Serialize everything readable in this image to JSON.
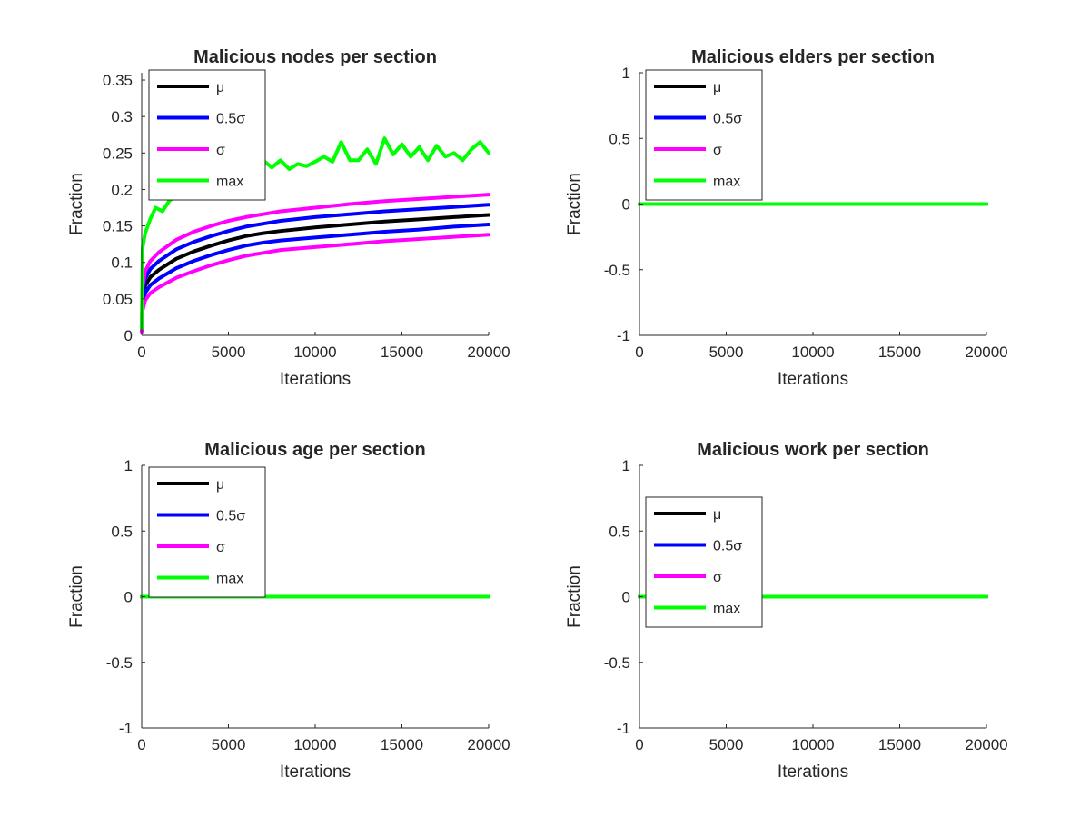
{
  "figure": {
    "background": "#ffffff"
  },
  "chart_data": [
    {
      "type": "line",
      "title": "Malicious nodes per section",
      "xlabel": "Iterations",
      "ylabel": "Fraction",
      "xlim": [
        0,
        20000
      ],
      "ylim": [
        0,
        0.36
      ],
      "xticks": [
        0,
        5000,
        10000,
        15000,
        20000
      ],
      "xtick_labels": [
        "0",
        "5000",
        "10000",
        "15000",
        "20000"
      ],
      "yticks": [
        0,
        0.05,
        0.1,
        0.15,
        0.2,
        0.25,
        0.3,
        0.35
      ],
      "ytick_labels": [
        "0",
        "0.05",
        "0.1",
        "0.15",
        "0.2",
        "0.25",
        "0.3",
        "0.35"
      ],
      "grid": false,
      "legend": {
        "position": "top-left",
        "entries": [
          "μ",
          "0.5σ",
          "0.5σ",
          "σ",
          "σ",
          "max"
        ]
      },
      "series": [
        {
          "name": "μ",
          "color": "#000000",
          "x": [
            0,
            50,
            200,
            500,
            1000,
            2000,
            3000,
            4000,
            5000,
            6000,
            7000,
            8000,
            10000,
            12000,
            14000,
            16000,
            18000,
            20000
          ],
          "y": [
            0.01,
            0.05,
            0.068,
            0.08,
            0.09,
            0.105,
            0.115,
            0.123,
            0.13,
            0.136,
            0.14,
            0.143,
            0.148,
            0.152,
            0.156,
            0.159,
            0.162,
            0.165
          ]
        },
        {
          "name": "0.5σ",
          "color": "#0000ff",
          "x": [
            0,
            50,
            200,
            500,
            1000,
            2000,
            3000,
            4000,
            5000,
            6000,
            7000,
            8000,
            10000,
            12000,
            14000,
            16000,
            18000,
            20000
          ],
          "y": [
            0.01,
            0.058,
            0.078,
            0.091,
            0.102,
            0.118,
            0.128,
            0.136,
            0.143,
            0.149,
            0.153,
            0.157,
            0.162,
            0.166,
            0.17,
            0.173,
            0.176,
            0.179
          ]
        },
        {
          "name": "0.5σ",
          "color": "#0000ff",
          "x": [
            0,
            50,
            200,
            500,
            1000,
            2000,
            3000,
            4000,
            5000,
            6000,
            7000,
            8000,
            10000,
            12000,
            14000,
            16000,
            18000,
            20000
          ],
          "y": [
            0.008,
            0.042,
            0.058,
            0.069,
            0.078,
            0.092,
            0.102,
            0.11,
            0.117,
            0.123,
            0.127,
            0.13,
            0.134,
            0.138,
            0.142,
            0.145,
            0.149,
            0.152
          ]
        },
        {
          "name": "σ",
          "color": "#ff00ff",
          "x": [
            0,
            50,
            200,
            500,
            1000,
            2000,
            3000,
            4000,
            5000,
            6000,
            7000,
            8000,
            10000,
            12000,
            14000,
            16000,
            18000,
            20000
          ],
          "y": [
            0.01,
            0.066,
            0.088,
            0.102,
            0.114,
            0.131,
            0.142,
            0.15,
            0.157,
            0.162,
            0.166,
            0.17,
            0.175,
            0.18,
            0.184,
            0.187,
            0.19,
            0.193
          ]
        },
        {
          "name": "σ",
          "color": "#ff00ff",
          "x": [
            0,
            50,
            200,
            500,
            1000,
            2000,
            3000,
            4000,
            5000,
            6000,
            7000,
            8000,
            10000,
            12000,
            14000,
            16000,
            18000,
            20000
          ],
          "y": [
            0.005,
            0.034,
            0.048,
            0.058,
            0.066,
            0.079,
            0.088,
            0.096,
            0.103,
            0.109,
            0.113,
            0.117,
            0.121,
            0.125,
            0.129,
            0.132,
            0.135,
            0.138
          ]
        },
        {
          "name": "max",
          "color": "#00ff00",
          "x": [
            0,
            50,
            200,
            500,
            800,
            1200,
            1600,
            2000,
            2500,
            3000,
            3500,
            4000,
            4500,
            5000,
            5500,
            6000,
            6500,
            7000,
            7500,
            8000,
            8500,
            9000,
            9500,
            10000,
            10500,
            11000,
            11500,
            12000,
            12500,
            13000,
            13500,
            14000,
            14500,
            15000,
            15500,
            16000,
            16500,
            17000,
            17500,
            18000,
            18500,
            19000,
            19500,
            20000
          ],
          "y": [
            0.01,
            0.12,
            0.14,
            0.16,
            0.175,
            0.17,
            0.185,
            0.19,
            0.2,
            0.205,
            0.22,
            0.2,
            0.215,
            0.218,
            0.215,
            0.225,
            0.22,
            0.24,
            0.23,
            0.24,
            0.228,
            0.235,
            0.232,
            0.238,
            0.245,
            0.238,
            0.265,
            0.24,
            0.24,
            0.255,
            0.235,
            0.27,
            0.248,
            0.262,
            0.245,
            0.258,
            0.24,
            0.26,
            0.245,
            0.25,
            0.24,
            0.255,
            0.265,
            0.25
          ]
        }
      ]
    },
    {
      "type": "line",
      "title": "Malicious elders per section",
      "xlabel": "Iterations",
      "ylabel": "Fraction",
      "xlim": [
        0,
        20000
      ],
      "ylim": [
        -1,
        1
      ],
      "xticks": [
        0,
        5000,
        10000,
        15000,
        20000
      ],
      "xtick_labels": [
        "0",
        "5000",
        "10000",
        "15000",
        "20000"
      ],
      "yticks": [
        -1,
        -0.5,
        0,
        0.5,
        1
      ],
      "ytick_labels": [
        "-1",
        "-0.5",
        "0",
        "0.5",
        "1"
      ],
      "grid": false,
      "legend": {
        "position": "top-left",
        "entries": [
          "μ",
          "0.5σ",
          "σ",
          "max"
        ]
      },
      "series": [
        {
          "name": "μ",
          "color": "#000000",
          "x": [
            0,
            20000
          ],
          "y": [
            0,
            0
          ]
        },
        {
          "name": "0.5σ",
          "color": "#0000ff",
          "x": [
            0,
            20000
          ],
          "y": [
            0,
            0
          ]
        },
        {
          "name": "σ",
          "color": "#ff00ff",
          "x": [
            0,
            20000
          ],
          "y": [
            0,
            0
          ]
        },
        {
          "name": "max",
          "color": "#00ff00",
          "x": [
            0,
            20000
          ],
          "y": [
            0,
            0
          ]
        }
      ]
    },
    {
      "type": "line",
      "title": "Malicious age per section",
      "xlabel": "Iterations",
      "ylabel": "Fraction",
      "xlim": [
        0,
        20000
      ],
      "ylim": [
        -1,
        1
      ],
      "xticks": [
        0,
        5000,
        10000,
        15000,
        20000
      ],
      "xtick_labels": [
        "0",
        "5000",
        "10000",
        "15000",
        "20000"
      ],
      "yticks": [
        -1,
        -0.5,
        0,
        0.5,
        1
      ],
      "ytick_labels": [
        "-1",
        "-0.5",
        "0",
        "0.5",
        "1"
      ],
      "grid": false,
      "legend": {
        "position": "top-left",
        "entries": [
          "μ",
          "0.5σ",
          "σ",
          "max"
        ]
      },
      "series": [
        {
          "name": "μ",
          "color": "#000000",
          "x": [
            0,
            20000
          ],
          "y": [
            0,
            0
          ]
        },
        {
          "name": "0.5σ",
          "color": "#0000ff",
          "x": [
            0,
            20000
          ],
          "y": [
            0,
            0
          ]
        },
        {
          "name": "σ",
          "color": "#ff00ff",
          "x": [
            0,
            20000
          ],
          "y": [
            0,
            0
          ]
        },
        {
          "name": "max",
          "color": "#00ff00",
          "x": [
            0,
            20000
          ],
          "y": [
            0,
            0
          ]
        }
      ]
    },
    {
      "type": "line",
      "title": "Malicious work per section",
      "xlabel": "Iterations",
      "ylabel": "Fraction",
      "xlim": [
        0,
        20000
      ],
      "ylim": [
        -1,
        1
      ],
      "xticks": [
        0,
        5000,
        10000,
        15000,
        20000
      ],
      "xtick_labels": [
        "0",
        "5000",
        "10000",
        "15000",
        "20000"
      ],
      "yticks": [
        -1,
        -0.5,
        0,
        0.5,
        1
      ],
      "ytick_labels": [
        "-1",
        "-0.5",
        "0",
        "0.5",
        "1"
      ],
      "grid": false,
      "legend": {
        "position": "top-left",
        "entries": [
          "μ",
          "0.5σ",
          "σ",
          "max"
        ]
      },
      "series": [
        {
          "name": "μ",
          "color": "#000000",
          "x": [
            0,
            20000
          ],
          "y": [
            0,
            0
          ]
        },
        {
          "name": "0.5σ",
          "color": "#0000ff",
          "x": [
            0,
            20000
          ],
          "y": [
            0,
            0
          ]
        },
        {
          "name": "σ",
          "color": "#ff00ff",
          "x": [
            0,
            20000
          ],
          "y": [
            0,
            0
          ]
        },
        {
          "name": "max",
          "color": "#00ff00",
          "x": [
            0,
            20000
          ],
          "y": [
            0,
            0
          ]
        }
      ]
    }
  ]
}
